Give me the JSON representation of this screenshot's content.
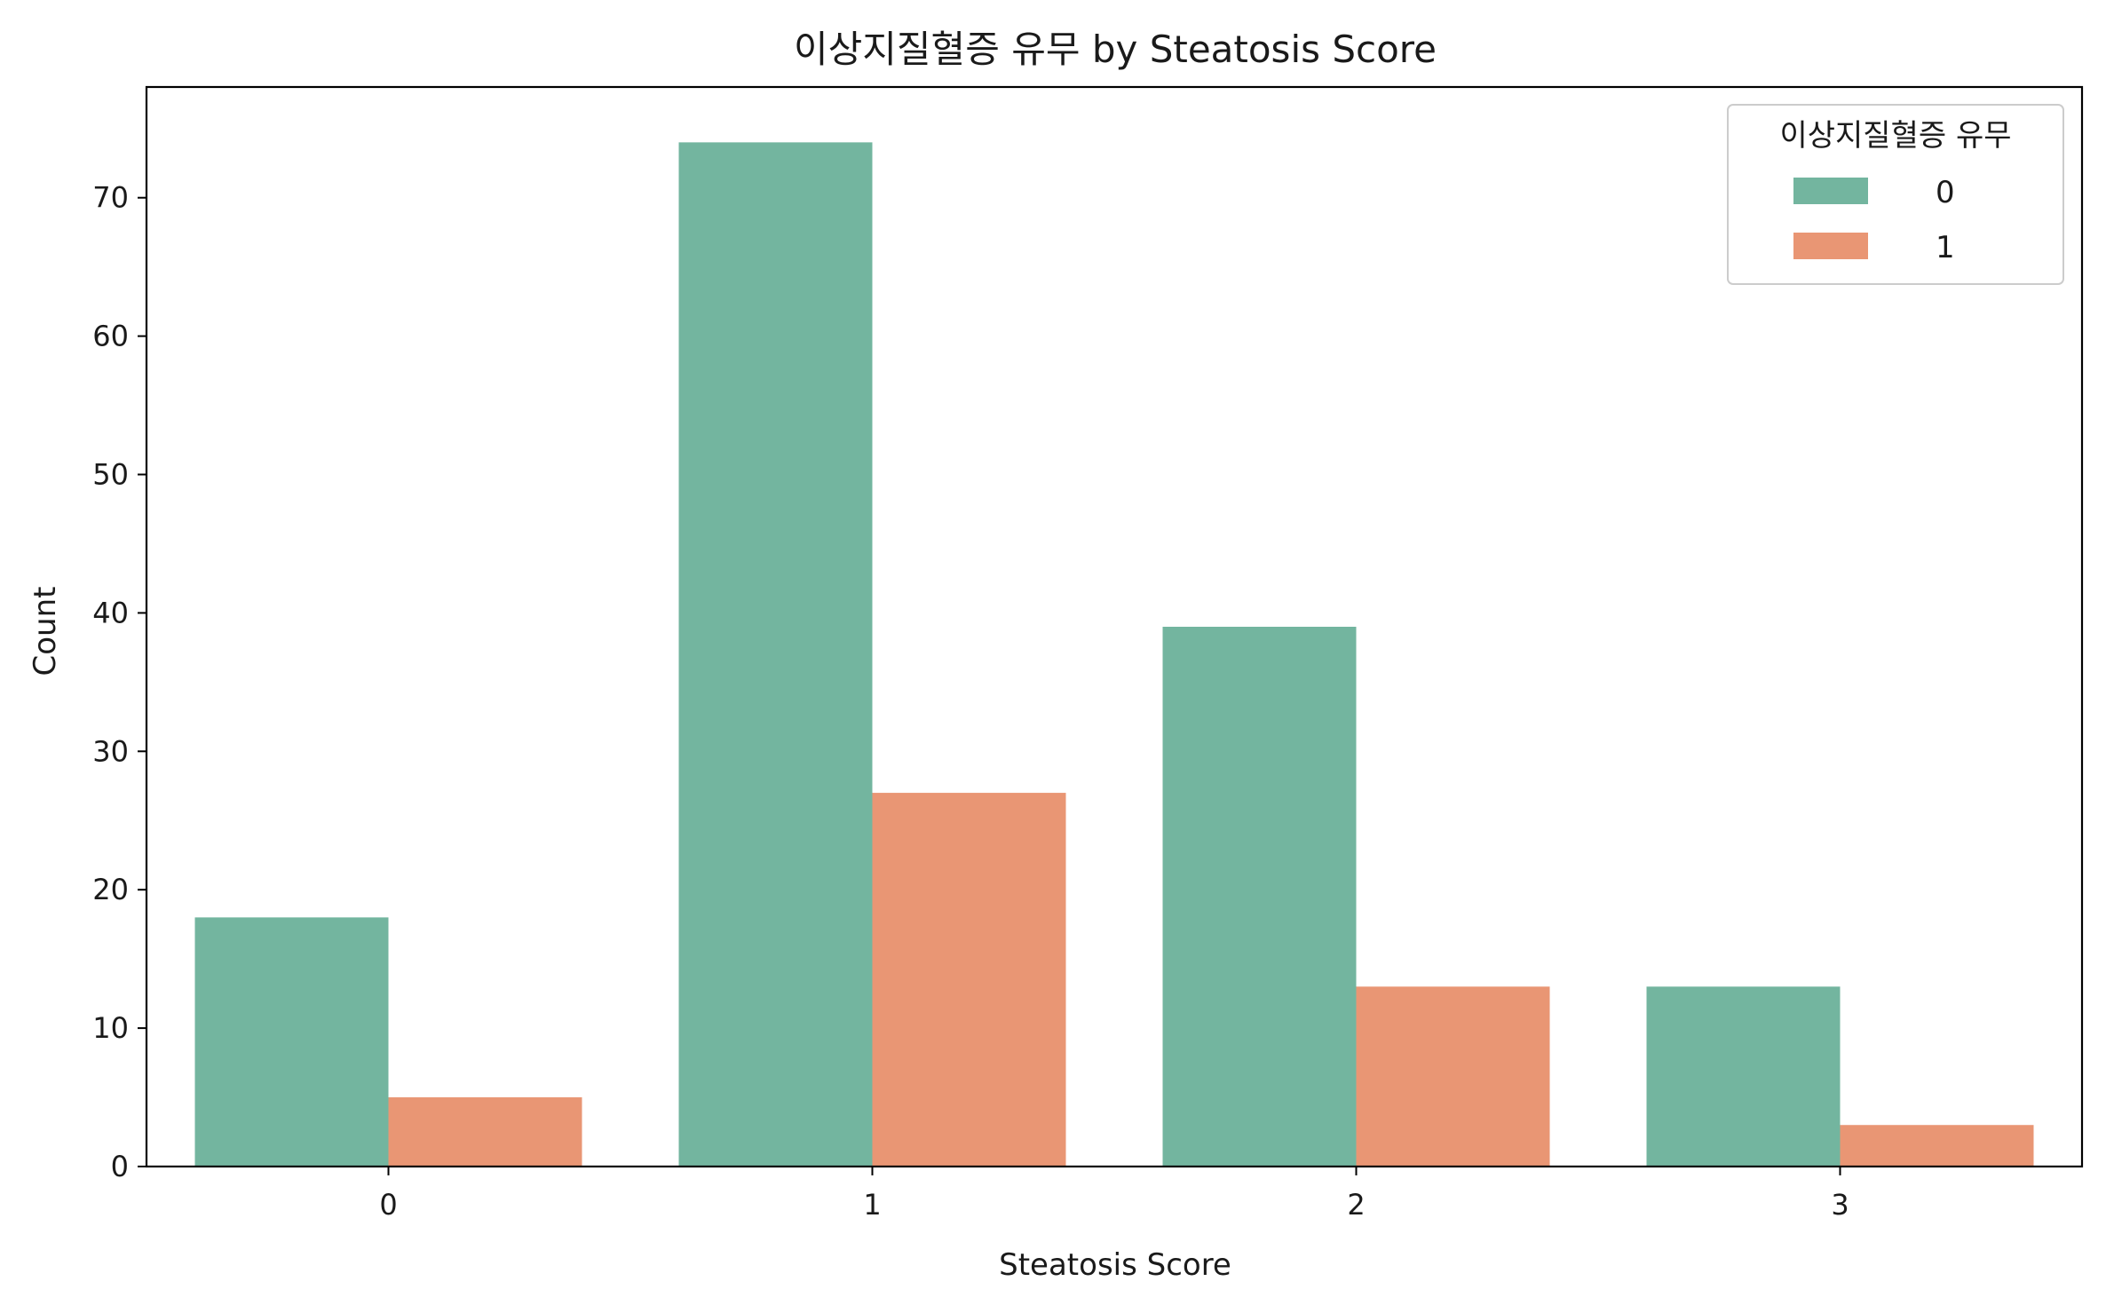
{
  "chart_data": {
    "type": "bar",
    "title": "이상지질혈증 유무 by Steatosis Score",
    "xlabel": "Steatosis Score",
    "ylabel": "Count",
    "categories": [
      "0",
      "1",
      "2",
      "3"
    ],
    "series": [
      {
        "name": "0",
        "color": "#73b59f",
        "values": [
          18,
          74,
          39,
          13
        ]
      },
      {
        "name": "1",
        "color": "#e99674",
        "values": [
          5,
          27,
          13,
          3
        ]
      }
    ],
    "ylim": [
      0,
      78
    ],
    "yticks": [
      0,
      10,
      20,
      30,
      40,
      50,
      60,
      70
    ],
    "grid": false,
    "legend": {
      "title": "이상지질혈증 유무",
      "placement": "top-right"
    }
  }
}
